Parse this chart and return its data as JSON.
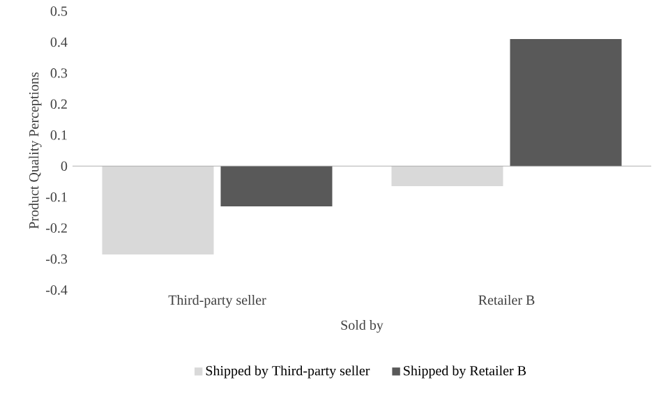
{
  "chart_data": {
    "type": "bar",
    "xlabel": "Sold by",
    "ylabel": "Product Quality Perceptions",
    "categories": [
      "Third-party seller",
      "Retailer B"
    ],
    "series": [
      {
        "name": "Shipped by Third-party seller",
        "color": "#d9d9d9",
        "values": [
          -0.285,
          -0.065
        ]
      },
      {
        "name": "Shipped by Retailer B",
        "color": "#595959",
        "values": [
          -0.13,
          0.41
        ]
      }
    ],
    "ylim": [
      -0.4,
      0.5
    ],
    "yticks": [
      -0.4,
      -0.3,
      -0.2,
      -0.1,
      0,
      0.1,
      0.2,
      0.3,
      0.4,
      0.5
    ],
    "legend": "bottom"
  }
}
